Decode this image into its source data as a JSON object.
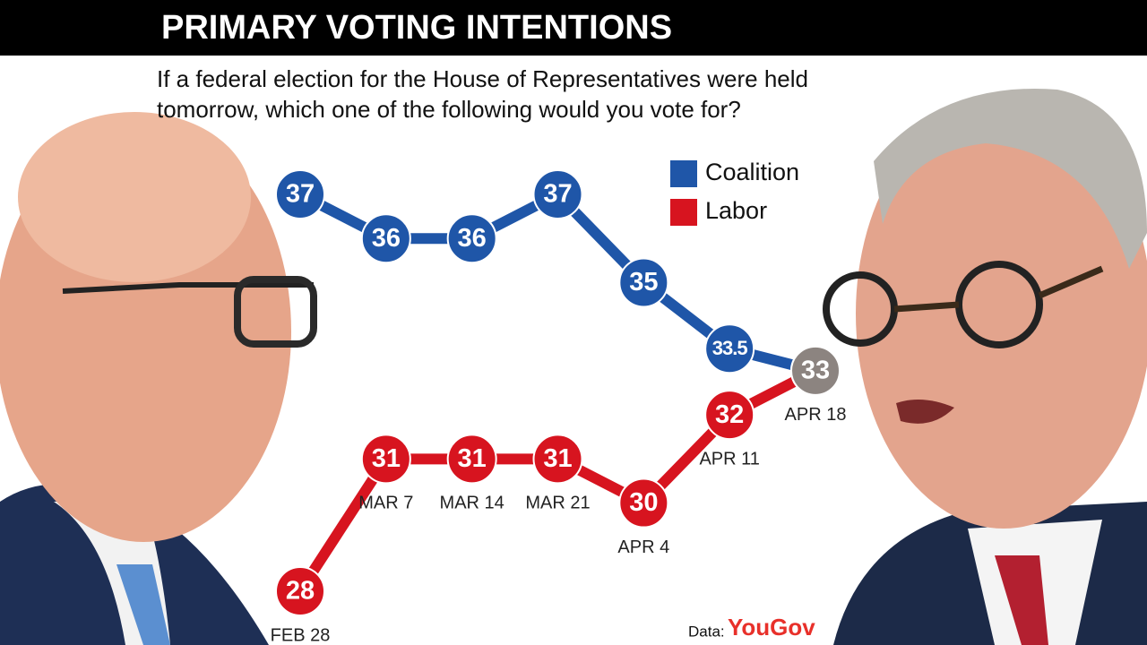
{
  "chart_data": {
    "type": "line",
    "title": "PRIMARY VOTING INTENTIONS",
    "subtitle": [
      "If a federal election for the House of Representatives were held",
      "tomorrow, which one of the following would you vote for?"
    ],
    "categories": [
      "FEB 28",
      "MAR 7",
      "MAR 14",
      "MAR 21",
      "APR 4",
      "APR 11",
      "APR 18"
    ],
    "series": [
      {
        "name": "Coalition",
        "color": "#1f56a8",
        "values": [
          37,
          36,
          36,
          37,
          35,
          33.5,
          33
        ]
      },
      {
        "name": "Labor",
        "color": "#d7141f",
        "values": [
          28,
          31,
          31,
          31,
          30,
          32,
          33
        ]
      }
    ],
    "tie_color": "#8c8480",
    "source_label": "Data:",
    "source": "YouGov",
    "source_color": "#e8302a"
  }
}
